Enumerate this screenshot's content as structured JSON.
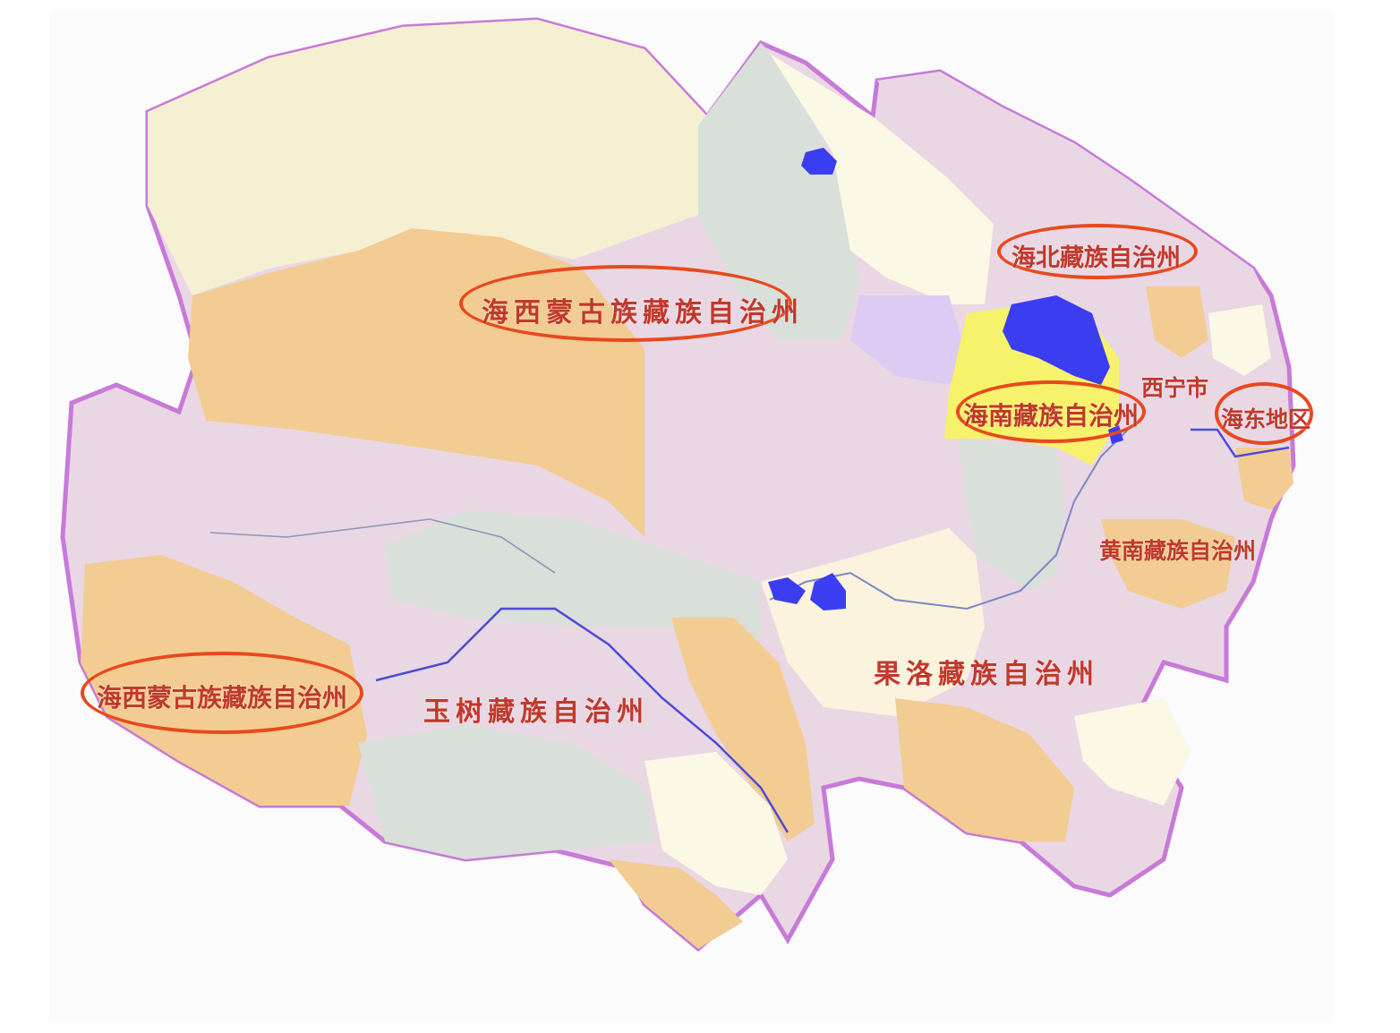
{
  "colors": {
    "label_text": "#c0392b",
    "highlight_ring": "#e8491d",
    "border": "#c77ad8",
    "lake": "#3b3df0",
    "river": "#5a5ae0",
    "cream": "#f6f0d2",
    "orange": "#f2cc93",
    "pink": "#ead7e4",
    "gray": "#d9dfd9",
    "lavender": "#dccbf2",
    "yellow": "#f7f26b",
    "ivory": "#fbf8e6"
  },
  "labels": {
    "haixi_north": "海西蒙古族藏族自治州",
    "haibei": "海北藏族自治州",
    "xining": "西宁市",
    "hainan": "海南藏族自治州",
    "haidong": "海东地区",
    "huangnan": "黄南藏族自治州",
    "guoluo": "果洛藏族自治州",
    "yushu": "玉树藏族自治州",
    "haixi_south": "海西蒙古族藏族自治州"
  }
}
